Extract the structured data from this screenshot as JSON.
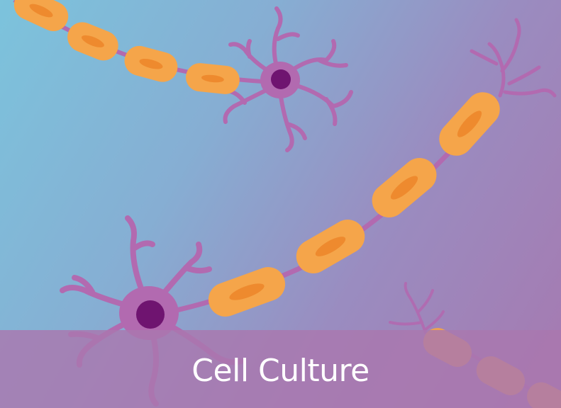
{
  "card": {
    "title": "Cell Culture"
  },
  "colors": {
    "background_start": "#7cc3dc",
    "background_end": "#a679b0",
    "cell_body": "#f5a54a",
    "cell_nucleus": "#ee8a2e",
    "neuron": "#b26ab0",
    "neuron_nucleus": "#6f1470",
    "caption_bar": "#aa78af",
    "caption_text": "#ffffff"
  },
  "illustration": {
    "subject": "neurons-with-myelinated-axons"
  }
}
